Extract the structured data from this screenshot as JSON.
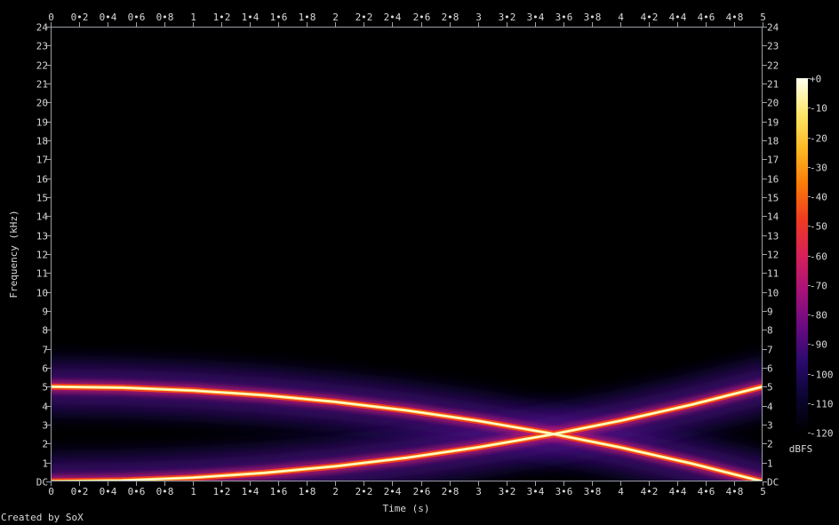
{
  "credit": "Created by SoX",
  "colors": {
    "background": "#000000",
    "axis": "#9aa0a6",
    "text": "#d8d8d8",
    "colormap": [
      "#000000",
      "#0a0530",
      "#2a0a6e",
      "#6a0a82",
      "#a8127a",
      "#d8205a",
      "#f03a20",
      "#fb7a08",
      "#fdb822",
      "#fde86a",
      "#fffff0"
    ]
  },
  "chart_data": {
    "type": "heatmap",
    "subtype": "spectrogram",
    "xlabel": "Time (s)",
    "ylabel": "Frequency (kHz)",
    "xlim": [
      0,
      5
    ],
    "ylim": [
      0,
      24
    ],
    "x_ticks": [
      "0",
      "0•2",
      "0•4",
      "0•6",
      "0•8",
      "1",
      "1•2",
      "1•4",
      "1•6",
      "1•8",
      "2",
      "2•2",
      "2•4",
      "2•6",
      "2•8",
      "3",
      "3•2",
      "3•4",
      "3•6",
      "3•8",
      "4",
      "4•2",
      "4•4",
      "4•6",
      "4•8",
      "5"
    ],
    "y_ticks": [
      "DC",
      "1",
      "2",
      "3",
      "4",
      "5",
      "6",
      "7",
      "8",
      "9",
      "10",
      "11",
      "12",
      "13",
      "14",
      "15",
      "16",
      "17",
      "18",
      "19",
      "20",
      "21",
      "22",
      "23",
      "24"
    ],
    "colorbar": {
      "label": "dBFS",
      "range": [
        -120,
        0
      ],
      "ticks": [
        "+0",
        "-10",
        "-20",
        "-30",
        "-40",
        "-50",
        "-60",
        "-70",
        "-80",
        "-90",
        "-100",
        "-110",
        "-120"
      ]
    },
    "series": [
      {
        "time_s": [
          0,
          0.5,
          1,
          1.5,
          2,
          2.5,
          3,
          3.5,
          4,
          4.5,
          5
        ],
        "frequency_khz": [
          5.0,
          4.95,
          4.8,
          4.55,
          4.2,
          3.75,
          3.2,
          2.55,
          1.8,
          0.95,
          0.0
        ]
      },
      {
        "time_s": [
          0,
          0.5,
          1,
          1.5,
          2,
          2.5,
          3,
          3.5,
          4,
          4.5,
          5
        ],
        "frequency_khz": [
          0.0,
          0.05,
          0.2,
          0.45,
          0.8,
          1.25,
          1.8,
          2.45,
          3.2,
          4.05,
          5.0
        ]
      }
    ]
  }
}
